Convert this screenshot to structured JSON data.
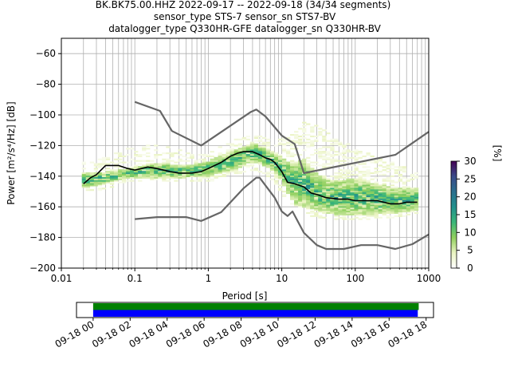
{
  "chart_data": {
    "type": "heatmap",
    "title_lines": [
      "BK.BK75.00.HHZ   2022-09-17 -- 2022-09-18  (34/34 segments)",
      "sensor_type STS-7 sensor_sn STS7-BV",
      "datalogger_type Q330HR-GFE datalogger_sn Q330HR-BV"
    ],
    "xlabel": "Period [s]",
    "ylabel": "Power [m²/s⁴/Hz] [dB]",
    "x_scale": "log",
    "xlim": [
      0.01,
      1000
    ],
    "ylim": [
      -200,
      -50
    ],
    "x_ticks": [
      {
        "value": 0.01,
        "label": "0.01"
      },
      {
        "value": 0.1,
        "label": "0.1"
      },
      {
        "value": 1,
        "label": "1"
      },
      {
        "value": 10,
        "label": "10"
      },
      {
        "value": 100,
        "label": "100"
      },
      {
        "value": 1000,
        "label": "1000"
      }
    ],
    "y_ticks": [
      -60,
      -80,
      -100,
      -120,
      -140,
      -160,
      -180,
      -200
    ],
    "grid": true,
    "colorbar": {
      "label": "[%]",
      "min": 0,
      "max": 30,
      "ticks": [
        0,
        5,
        10,
        15,
        20,
        25,
        30
      ],
      "colors": [
        "#ffffff",
        "#e9f3c0",
        "#8fcf5d",
        "#3ab679",
        "#21908d",
        "#2b6f8e",
        "#3b4b8a",
        "#440154"
      ]
    },
    "mean_curve": [
      [
        0.02,
        -145
      ],
      [
        0.025,
        -141
      ],
      [
        0.03,
        -139
      ],
      [
        0.04,
        -133
      ],
      [
        0.06,
        -133
      ],
      [
        0.08,
        -135
      ],
      [
        0.1,
        -136
      ],
      [
        0.15,
        -134
      ],
      [
        0.2,
        -135
      ],
      [
        0.3,
        -137
      ],
      [
        0.4,
        -138
      ],
      [
        0.6,
        -138
      ],
      [
        0.8,
        -137
      ],
      [
        1,
        -135
      ],
      [
        1.5,
        -131
      ],
      [
        2,
        -127
      ],
      [
        2.5,
        -125
      ],
      [
        3,
        -124
      ],
      [
        4,
        -124
      ],
      [
        5,
        -126
      ],
      [
        6,
        -128
      ],
      [
        7,
        -129
      ],
      [
        8,
        -131
      ],
      [
        10,
        -137
      ],
      [
        12,
        -144
      ],
      [
        15,
        -145
      ],
      [
        20,
        -147
      ],
      [
        25,
        -151
      ],
      [
        30,
        -152
      ],
      [
        40,
        -154
      ],
      [
        60,
        -155
      ],
      [
        80,
        -155
      ],
      [
        100,
        -156
      ],
      [
        200,
        -156
      ],
      [
        300,
        -158
      ],
      [
        400,
        -158
      ],
      [
        500,
        -157
      ],
      [
        700,
        -157
      ]
    ],
    "nhnm": [
      [
        0.1,
        -168
      ],
      [
        0.2,
        -166.7
      ],
      [
        0.5,
        -166.7
      ],
      [
        0.8,
        -169.2
      ],
      [
        1.5,
        -163.5
      ],
      [
        3,
        -148
      ],
      [
        4.5,
        -141
      ],
      [
        5,
        -141
      ],
      [
        8,
        -154
      ],
      [
        10,
        -163
      ],
      [
        12,
        -166
      ],
      [
        14,
        -163
      ],
      [
        20,
        -177
      ],
      [
        30,
        -185
      ],
      [
        40,
        -187.5
      ],
      [
        70,
        -187.5
      ],
      [
        120,
        -185
      ],
      [
        200,
        -185
      ],
      [
        350,
        -187.5
      ],
      [
        600,
        -184.4
      ],
      [
        1000,
        -178
      ]
    ],
    "nlnm": [
      [
        0.1,
        -91.5
      ],
      [
        0.22,
        -97.4
      ],
      [
        0.32,
        -110.5
      ],
      [
        0.8,
        -120
      ],
      [
        3.8,
        -98
      ],
      [
        4.5,
        -96.5
      ],
      [
        6,
        -101
      ],
      [
        10,
        -113.5
      ],
      [
        15,
        -119
      ],
      [
        20,
        -138
      ],
      [
        354,
        -126
      ],
      [
        1000,
        -111
      ]
    ],
    "psd_bands": {
      "periods": [
        0.02,
        0.04,
        0.08,
        0.2,
        0.5,
        1,
        2,
        3,
        4,
        5,
        6,
        8,
        10,
        12,
        15,
        20,
        30,
        50,
        100,
        200,
        400,
        700
      ],
      "upper": [
        -138,
        -137,
        -135,
        -131,
        -133,
        -130,
        -124,
        -121,
        -118,
        -120,
        -122,
        -125,
        -127,
        -130,
        -132,
        -128,
        -138,
        -143,
        -141,
        -145,
        -148,
        -148
      ],
      "lower": [
        -148,
        -145,
        -141,
        -141,
        -141,
        -140,
        -137,
        -133,
        -131,
        -131,
        -134,
        -137,
        -143,
        -151,
        -158,
        -160,
        -163,
        -165,
        -166,
        -165,
        -164,
        -162
      ],
      "outlier_upper": [
        -132,
        -128,
        -123,
        -120,
        -125,
        -126,
        -118,
        -115,
        -113,
        -114,
        -116,
        -117,
        -116,
        -113,
        -110,
        -104,
        -106,
        -115,
        -122,
        -128,
        -133,
        -137
      ],
      "outlier_lower": [
        -150,
        -148,
        -143,
        -143,
        -143,
        -143,
        -140,
        -137,
        -135,
        -136,
        -140,
        -143,
        -150,
        -156,
        -160,
        -164,
        -167,
        -167,
        -168,
        -167,
        -166,
        -164
      ]
    },
    "coverage": {
      "tick_labels": [
        "09-18 00",
        "09-18 02",
        "09-18 04",
        "09-18 06",
        "09-18 08",
        "09-18 10",
        "09-18 12",
        "09-18 14",
        "09-18 16",
        "09-18 18"
      ],
      "tick_hours": [
        0,
        2,
        4,
        6,
        8,
        10,
        12,
        14,
        16,
        18
      ],
      "range_hours": [
        -0.9,
        18.4
      ],
      "bars": [
        {
          "start_hour": 0,
          "end_hour": 17.6,
          "color": "#008000"
        },
        {
          "start_hour": 0,
          "end_hour": 17.55,
          "color": "#0000ff"
        }
      ]
    }
  }
}
